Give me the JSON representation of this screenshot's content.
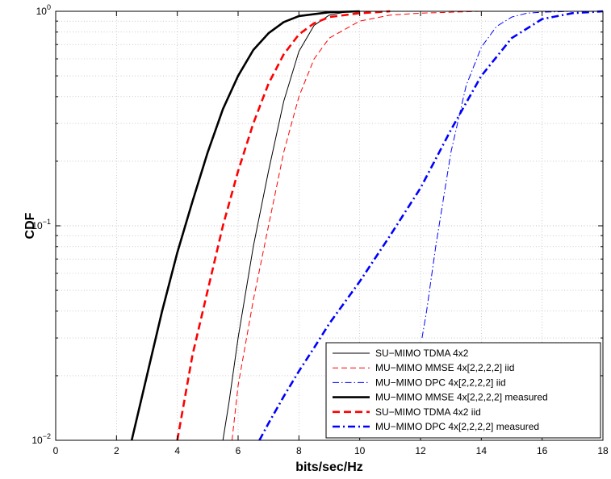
{
  "chart_data": {
    "type": "line",
    "title": "",
    "xlabel": "bits/sec/Hz",
    "ylabel": "CDF",
    "xlim": [
      0,
      18
    ],
    "ylim": [
      0.01,
      1
    ],
    "yscale": "log",
    "grid": true,
    "legend_position": "bottom-right",
    "x_ticks": [
      0,
      2,
      4,
      6,
      8,
      10,
      12,
      14,
      16,
      18
    ],
    "y_ticks": [
      {
        "value": 0.01,
        "base": "10",
        "exp": "−2"
      },
      {
        "value": 0.1,
        "base": "10",
        "exp": "−1"
      },
      {
        "value": 1,
        "base": "10",
        "exp": "0"
      }
    ],
    "series": [
      {
        "name": "SU−MIMO TDMA 4x2",
        "color": "#000000",
        "dash": "solid",
        "width": 1,
        "x": [
          5.5,
          5.7,
          6.0,
          6.5,
          7.0,
          7.5,
          8.0,
          8.5,
          9.0,
          9.5,
          10.0,
          10.5
        ],
        "y": [
          0.01,
          0.015,
          0.03,
          0.08,
          0.18,
          0.38,
          0.65,
          0.86,
          0.96,
          0.99,
          1.0,
          1.0
        ]
      },
      {
        "name": "MU−MIMO MMSE 4x[2,2,2,2] iid",
        "color": "#ff0000",
        "dash": "dashed",
        "width": 1,
        "x": [
          5.8,
          6.0,
          6.5,
          7.0,
          7.5,
          8.0,
          8.5,
          9.0,
          10.0,
          11.0,
          12.0,
          13.0,
          14.0,
          16.0,
          18.0
        ],
        "y": [
          0.01,
          0.018,
          0.045,
          0.1,
          0.22,
          0.4,
          0.6,
          0.75,
          0.9,
          0.96,
          0.98,
          0.99,
          1.0,
          1.0,
          1.0
        ]
      },
      {
        "name": "MU−MIMO DPC 4x[2,2,2,2] iid",
        "color": "#0000ff",
        "dash": "dashdot",
        "width": 1,
        "x": [
          12.05,
          12.2,
          12.5,
          13.0,
          13.5,
          14.0,
          14.5,
          15.0,
          15.5,
          16.0,
          17.0,
          18.0
        ],
        "y": [
          0.03,
          0.04,
          0.08,
          0.22,
          0.45,
          0.68,
          0.85,
          0.94,
          0.98,
          0.99,
          1.0,
          1.0
        ]
      },
      {
        "name": "MU−MIMO MMSE 4x[2,2,2,2] measured",
        "color": "#000000",
        "dash": "solid",
        "width": 2.6,
        "x": [
          2.5,
          3.0,
          3.5,
          4.0,
          4.5,
          5.0,
          5.5,
          6.0,
          6.5,
          7.0,
          7.5,
          8.0,
          9.0,
          10.0
        ],
        "y": [
          0.01,
          0.02,
          0.04,
          0.075,
          0.13,
          0.22,
          0.35,
          0.5,
          0.66,
          0.79,
          0.89,
          0.95,
          0.99,
          1.0
        ]
      },
      {
        "name": "SU−MIMO TDMA 4x2 iid",
        "color": "#ff0000",
        "dash": "dashed",
        "width": 2.6,
        "x": [
          4.0,
          4.5,
          5.0,
          5.5,
          6.0,
          6.5,
          7.0,
          7.5,
          8.0,
          8.5,
          9.0,
          10.0,
          11.0
        ],
        "y": [
          0.01,
          0.025,
          0.05,
          0.1,
          0.18,
          0.3,
          0.46,
          0.63,
          0.78,
          0.88,
          0.94,
          0.98,
          1.0
        ]
      },
      {
        "name": "MU−MIMO DPC 4x[2,2,2,2] measured",
        "color": "#0000ff",
        "dash": "dashdot",
        "width": 2.6,
        "x": [
          6.7,
          7.0,
          7.5,
          8.0,
          8.5,
          9.0,
          10.0,
          11.0,
          12.0,
          13.0,
          14.0,
          15.0,
          16.0,
          17.0,
          18.0
        ],
        "y": [
          0.01,
          0.012,
          0.016,
          0.021,
          0.027,
          0.035,
          0.055,
          0.09,
          0.15,
          0.28,
          0.5,
          0.75,
          0.92,
          0.98,
          1.0
        ]
      }
    ]
  }
}
